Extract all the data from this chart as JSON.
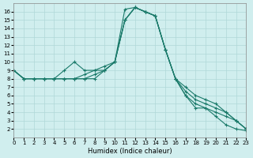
{
  "xlabel": "Humidex (Indice chaleur)",
  "ylabel": "",
  "background_color": "#d0eeee",
  "grid_color": "#b0d8d8",
  "line_color": "#1a7a6a",
  "xlim": [
    0,
    23
  ],
  "ylim": [
    1,
    17
  ],
  "xticks": [
    0,
    1,
    2,
    3,
    4,
    5,
    6,
    7,
    8,
    9,
    10,
    11,
    12,
    13,
    14,
    15,
    16,
    17,
    18,
    19,
    20,
    21,
    22,
    23
  ],
  "yticks": [
    2,
    3,
    4,
    5,
    6,
    7,
    8,
    9,
    10,
    11,
    12,
    13,
    14,
    15,
    16
  ],
  "series": [
    {
      "x": [
        0,
        1,
        2,
        3,
        4,
        5,
        6,
        7,
        8,
        9,
        10,
        11,
        12,
        13,
        14,
        15,
        16,
        17,
        18,
        19,
        20,
        21,
        22,
        23
      ],
      "y": [
        9,
        8,
        8,
        8,
        8,
        8,
        8,
        8,
        8,
        9,
        10,
        16.3,
        16.5,
        16,
        15.5,
        11.5,
        8,
        6,
        4.5,
        4.5,
        3.5,
        2.5,
        2,
        1.8
      ]
    },
    {
      "x": [
        0,
        1,
        2,
        3,
        4,
        5,
        6,
        7,
        8,
        9,
        10,
        11,
        12,
        13,
        14,
        15,
        16,
        17,
        18,
        19,
        20,
        21,
        22,
        23
      ],
      "y": [
        9,
        8,
        8,
        8,
        8,
        9,
        10,
        9,
        9,
        9.5,
        10,
        15,
        16.5,
        16,
        15.5,
        11.5,
        8,
        7,
        6,
        5.5,
        5,
        4,
        3,
        2
      ]
    },
    {
      "x": [
        0,
        1,
        2,
        3,
        4,
        5,
        6,
        7,
        8,
        9,
        10,
        11,
        12,
        13,
        14,
        15,
        16,
        17,
        18,
        19,
        20,
        21,
        22,
        23
      ],
      "y": [
        9,
        8,
        8,
        8,
        8,
        8,
        8,
        8.5,
        9,
        9,
        10,
        15,
        16.5,
        16,
        15.5,
        11.5,
        8,
        6.5,
        5.5,
        5,
        4.5,
        4,
        3,
        2
      ]
    },
    {
      "x": [
        0,
        1,
        2,
        3,
        4,
        5,
        6,
        7,
        8,
        9,
        10,
        11,
        12,
        13,
        14,
        15,
        16,
        17,
        18,
        19,
        20,
        21,
        22,
        23
      ],
      "y": [
        9,
        8,
        8,
        8,
        8,
        8,
        8,
        8,
        8.5,
        9,
        10,
        15,
        16.5,
        16,
        15.5,
        11.5,
        8,
        6,
        5,
        4.5,
        4,
        3.5,
        3,
        2
      ]
    }
  ]
}
